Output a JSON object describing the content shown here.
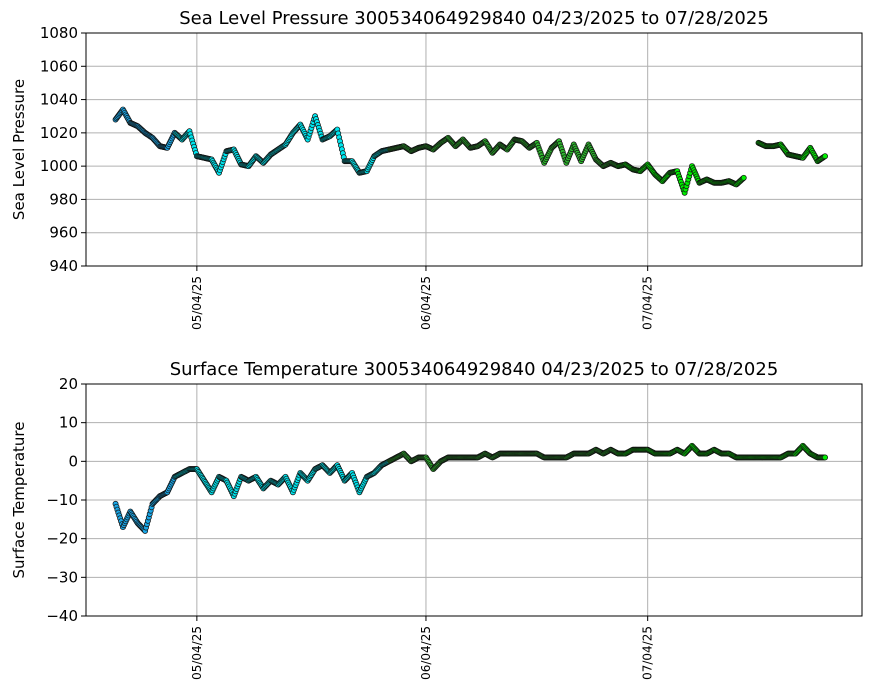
{
  "chart_data": [
    {
      "type": "scatter",
      "title": "Sea Level Pressure 300534064929840  04/23/2025 to 07/28/2025",
      "xlabel": "",
      "ylabel": "Sea Level Pressure",
      "ylim": [
        940,
        1080
      ],
      "yticks": [
        940,
        960,
        980,
        1000,
        1020,
        1040,
        1060,
        1080
      ],
      "xlim": [
        "2025-04-19",
        "2025-08-02"
      ],
      "xticks": [
        "2025-05-04",
        "2025-06-04",
        "2025-07-04"
      ],
      "xtick_labels": [
        "05/04/25",
        "06/04/25",
        "07/04/25"
      ],
      "grid": true,
      "color_segments": [
        {
          "from": "2025-04-23",
          "to": "2025-05-01",
          "color": "#1aa6e6"
        },
        {
          "from": "2025-05-01",
          "to": "2025-05-30",
          "color": "#00e5ee"
        },
        {
          "from": "2025-05-30",
          "to": "2025-06-30",
          "color": "#2db82d"
        },
        {
          "from": "2025-06-30",
          "to": "2025-07-28",
          "color": "#00ee00"
        }
      ],
      "x": [
        "2025-04-23",
        "2025-04-24",
        "2025-04-25",
        "2025-04-26",
        "2025-04-27",
        "2025-04-28",
        "2025-04-29",
        "2025-04-30",
        "2025-05-01",
        "2025-05-02",
        "2025-05-03",
        "2025-05-04",
        "2025-05-05",
        "2025-05-06",
        "2025-05-07",
        "2025-05-08",
        "2025-05-09",
        "2025-05-10",
        "2025-05-11",
        "2025-05-12",
        "2025-05-13",
        "2025-05-14",
        "2025-05-15",
        "2025-05-16",
        "2025-05-17",
        "2025-05-18",
        "2025-05-19",
        "2025-05-20",
        "2025-05-21",
        "2025-05-22",
        "2025-05-23",
        "2025-05-24",
        "2025-05-25",
        "2025-05-26",
        "2025-05-27",
        "2025-05-28",
        "2025-05-29",
        "2025-05-30",
        "2025-05-31",
        "2025-06-01",
        "2025-06-02",
        "2025-06-03",
        "2025-06-04",
        "2025-06-05",
        "2025-06-06",
        "2025-06-07",
        "2025-06-08",
        "2025-06-09",
        "2025-06-10",
        "2025-06-11",
        "2025-06-12",
        "2025-06-13",
        "2025-06-14",
        "2025-06-15",
        "2025-06-16",
        "2025-06-17",
        "2025-06-18",
        "2025-06-19",
        "2025-06-20",
        "2025-06-21",
        "2025-06-22",
        "2025-06-23",
        "2025-06-24",
        "2025-06-25",
        "2025-06-26",
        "2025-06-27",
        "2025-06-28",
        "2025-06-29",
        "2025-06-30",
        "2025-07-01",
        "2025-07-02",
        "2025-07-03",
        "2025-07-04",
        "2025-07-05",
        "2025-07-06",
        "2025-07-07",
        "2025-07-08",
        "2025-07-09",
        "2025-07-10",
        "2025-07-11",
        "2025-07-12",
        "2025-07-13",
        "2025-07-14",
        "2025-07-15",
        "2025-07-16",
        "2025-07-17",
        "2025-07-18",
        "2025-07-19",
        "2025-07-20",
        "2025-07-21",
        "2025-07-22",
        "2025-07-23",
        "2025-07-24",
        "2025-07-25",
        "2025-07-26",
        "2025-07-27",
        "2025-07-28"
      ],
      "y": [
        1028,
        1034,
        1026,
        1024,
        1020,
        1017,
        1012,
        1011,
        1020,
        1016,
        1021,
        1006,
        1005,
        1004,
        996,
        1009,
        1010,
        1001,
        1000,
        1006,
        1002,
        1007,
        1010,
        1013,
        1020,
        1025,
        1016,
        1030,
        1016,
        1018,
        1022,
        1003,
        1003,
        996,
        997,
        1006,
        1009,
        1010,
        1011,
        1012,
        1009,
        1011,
        1012,
        1010,
        1014,
        1017,
        1012,
        1016,
        1011,
        1012,
        1015,
        1008,
        1013,
        1010,
        1016,
        1015,
        1011,
        1014,
        1002,
        1011,
        1015,
        1002,
        1013,
        1003,
        1013,
        1004,
        1000,
        1002,
        1000,
        1001,
        998,
        997,
        1001,
        995,
        991,
        996,
        997,
        984,
        1000,
        990,
        992,
        990,
        990,
        991,
        989,
        993,
        null,
        1014,
        1012,
        1012,
        1013,
        1007,
        1006,
        1005,
        1011,
        1003,
        1006
      ],
      "series": [
        {
          "values": []
        }
      ]
    },
    {
      "type": "scatter",
      "title": "Surface Temperature 300534064929840  04/23/2025 to 07/28/2025",
      "xlabel": "",
      "ylabel": "Surface Temperature",
      "ylim": [
        -40,
        20
      ],
      "yticks": [
        -40,
        -30,
        -20,
        -10,
        0,
        10,
        20
      ],
      "xlim": [
        "2025-04-19",
        "2025-08-02"
      ],
      "xticks": [
        "2025-05-04",
        "2025-06-04",
        "2025-07-04"
      ],
      "xtick_labels": [
        "05/04/25",
        "06/04/25",
        "07/04/25"
      ],
      "grid": true,
      "color_segments": [
        {
          "from": "2025-04-23",
          "to": "2025-05-01",
          "color": "#1aa6e6"
        },
        {
          "from": "2025-05-01",
          "to": "2025-05-30",
          "color": "#00e5ee"
        },
        {
          "from": "2025-05-30",
          "to": "2025-06-30",
          "color": "#2db82d"
        },
        {
          "from": "2025-06-30",
          "to": "2025-07-28",
          "color": "#00ee00"
        }
      ],
      "x": [
        "2025-04-23",
        "2025-04-24",
        "2025-04-25",
        "2025-04-26",
        "2025-04-27",
        "2025-04-28",
        "2025-04-29",
        "2025-04-30",
        "2025-05-01",
        "2025-05-02",
        "2025-05-03",
        "2025-05-04",
        "2025-05-05",
        "2025-05-06",
        "2025-05-07",
        "2025-05-08",
        "2025-05-09",
        "2025-05-10",
        "2025-05-11",
        "2025-05-12",
        "2025-05-13",
        "2025-05-14",
        "2025-05-15",
        "2025-05-16",
        "2025-05-17",
        "2025-05-18",
        "2025-05-19",
        "2025-05-20",
        "2025-05-21",
        "2025-05-22",
        "2025-05-23",
        "2025-05-24",
        "2025-05-25",
        "2025-05-26",
        "2025-05-27",
        "2025-05-28",
        "2025-05-29",
        "2025-05-30",
        "2025-05-31",
        "2025-06-01",
        "2025-06-02",
        "2025-06-03",
        "2025-06-04",
        "2025-06-05",
        "2025-06-06",
        "2025-06-07",
        "2025-06-08",
        "2025-06-09",
        "2025-06-10",
        "2025-06-11",
        "2025-06-12",
        "2025-06-13",
        "2025-06-14",
        "2025-06-15",
        "2025-06-16",
        "2025-06-17",
        "2025-06-18",
        "2025-06-19",
        "2025-06-20",
        "2025-06-21",
        "2025-06-22",
        "2025-06-23",
        "2025-06-24",
        "2025-06-25",
        "2025-06-26",
        "2025-06-27",
        "2025-06-28",
        "2025-06-29",
        "2025-06-30",
        "2025-07-01",
        "2025-07-02",
        "2025-07-03",
        "2025-07-04",
        "2025-07-05",
        "2025-07-06",
        "2025-07-07",
        "2025-07-08",
        "2025-07-09",
        "2025-07-10",
        "2025-07-11",
        "2025-07-12",
        "2025-07-13",
        "2025-07-14",
        "2025-07-15",
        "2025-07-16",
        "2025-07-17",
        "2025-07-18",
        "2025-07-19",
        "2025-07-20",
        "2025-07-21",
        "2025-07-22",
        "2025-07-23",
        "2025-07-24",
        "2025-07-25",
        "2025-07-26",
        "2025-07-27",
        "2025-07-28"
      ],
      "y": [
        -11,
        -17,
        -13,
        -16,
        -18,
        -11,
        -9,
        -8,
        -4,
        -3,
        -2,
        -2,
        -5,
        -8,
        -4,
        -5,
        -9,
        -4,
        -5,
        -4,
        -7,
        -5,
        -6,
        -4,
        -8,
        -3,
        -5,
        -2,
        -1,
        -3,
        -1,
        -5,
        -3,
        -8,
        -4,
        -3,
        -1,
        0,
        1,
        2,
        0,
        1,
        1,
        -2,
        0,
        1,
        1,
        1,
        1,
        1,
        2,
        1,
        2,
        2,
        2,
        2,
        2,
        2,
        1,
        1,
        1,
        1,
        2,
        2,
        2,
        3,
        2,
        3,
        2,
        2,
        3,
        3,
        3,
        2,
        2,
        2,
        3,
        2,
        4,
        2,
        2,
        3,
        2,
        2,
        1,
        1,
        1,
        1,
        1,
        1,
        1,
        2,
        2,
        4,
        2,
        1,
        1
      ],
      "series": [
        {
          "values": []
        }
      ]
    }
  ]
}
